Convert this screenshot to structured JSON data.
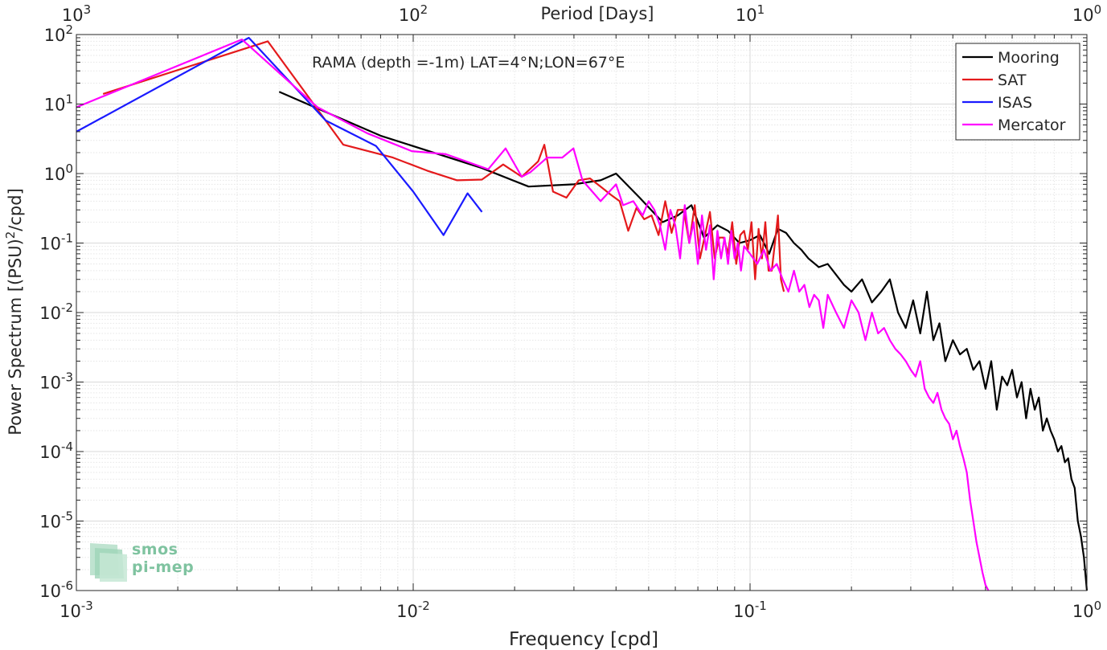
{
  "chart_data": {
    "type": "line",
    "title": "RAMA (depth =-1m) LAT=4°N;LON=67°E",
    "xlabel": "Frequency [cpd]",
    "ylabel": "Power Spectrum [(PSU)^2/cpd]",
    "top_axis_label": "Period [Days]",
    "x_scale": "log",
    "y_scale": "log",
    "xlim": [
      0.001,
      1
    ],
    "ylim": [
      1e-06,
      100
    ],
    "grid": true,
    "legend_position": "top-right",
    "x_ticks": [
      {
        "value": 0.001,
        "base": "10",
        "exp": "-3"
      },
      {
        "value": 0.01,
        "base": "10",
        "exp": "-2"
      },
      {
        "value": 0.1,
        "base": "10",
        "exp": "-1"
      },
      {
        "value": 1,
        "base": "10",
        "exp": "0"
      }
    ],
    "top_ticks": [
      {
        "value": 0.001,
        "base": "10",
        "exp": "3"
      },
      {
        "value": 0.01,
        "base": "10",
        "exp": "2"
      },
      {
        "value": 0.1,
        "base": "10",
        "exp": "1"
      },
      {
        "value": 1,
        "base": "10",
        "exp": "0"
      }
    ],
    "y_ticks": [
      {
        "value": 100,
        "base": "10",
        "exp": "2"
      },
      {
        "value": 10,
        "base": "10",
        "exp": "1"
      },
      {
        "value": 1,
        "base": "10",
        "exp": "0"
      },
      {
        "value": 0.1,
        "base": "10",
        "exp": "-1"
      },
      {
        "value": 0.01,
        "base": "10",
        "exp": "-2"
      },
      {
        "value": 0.001,
        "base": "10",
        "exp": "-3"
      },
      {
        "value": 0.0001,
        "base": "10",
        "exp": "-4"
      },
      {
        "value": 1e-05,
        "base": "10",
        "exp": "-5"
      },
      {
        "value": 1e-06,
        "base": "10",
        "exp": "-6"
      }
    ],
    "series": [
      {
        "name": "Mooring",
        "color": "#000000",
        "x": [
          0.004,
          0.008,
          0.016,
          0.022,
          0.03,
          0.036,
          0.04,
          0.047,
          0.055,
          0.061,
          0.067,
          0.073,
          0.08,
          0.086,
          0.093,
          0.1,
          0.107,
          0.114,
          0.121,
          0.128,
          0.135,
          0.142,
          0.149,
          0.16,
          0.17,
          0.18,
          0.19,
          0.2,
          0.215,
          0.23,
          0.245,
          0.26,
          0.275,
          0.29,
          0.305,
          0.32,
          0.335,
          0.35,
          0.365,
          0.38,
          0.4,
          0.42,
          0.44,
          0.46,
          0.48,
          0.5,
          0.52,
          0.54,
          0.56,
          0.58,
          0.6,
          0.62,
          0.64,
          0.66,
          0.68,
          0.7,
          0.72,
          0.74,
          0.76,
          0.78,
          0.8,
          0.82,
          0.84,
          0.86,
          0.88,
          0.9,
          0.92,
          0.94,
          0.96,
          0.98,
          1.0
        ],
        "y": [
          15,
          3.5,
          1.2,
          0.65,
          0.7,
          0.8,
          1.0,
          0.45,
          0.2,
          0.25,
          0.35,
          0.12,
          0.18,
          0.15,
          0.1,
          0.11,
          0.13,
          0.07,
          0.16,
          0.14,
          0.1,
          0.08,
          0.06,
          0.045,
          0.05,
          0.035,
          0.025,
          0.02,
          0.03,
          0.014,
          0.02,
          0.03,
          0.01,
          0.006,
          0.015,
          0.005,
          0.02,
          0.004,
          0.007,
          0.002,
          0.004,
          0.0025,
          0.003,
          0.0015,
          0.002,
          0.0008,
          0.002,
          0.0004,
          0.0012,
          0.0009,
          0.0015,
          0.0006,
          0.001,
          0.0003,
          0.0008,
          0.0004,
          0.0006,
          0.0002,
          0.0003,
          0.0002,
          0.00015,
          0.0001,
          0.00012,
          7e-05,
          8e-05,
          4e-05,
          3e-05,
          1e-05,
          6e-06,
          3e-06,
          1e-06
        ]
      },
      {
        "name": "SAT",
        "color": "#e41a1c",
        "x": [
          0.0012,
          0.0037,
          0.0062,
          0.0087,
          0.011,
          0.0135,
          0.016,
          0.0185,
          0.021,
          0.0235,
          0.0245,
          0.026,
          0.0285,
          0.031,
          0.0335,
          0.036,
          0.0385,
          0.041,
          0.0435,
          0.046,
          0.0485,
          0.051,
          0.0535,
          0.056,
          0.0585,
          0.061,
          0.0635,
          0.066,
          0.0685,
          0.071,
          0.0735,
          0.076,
          0.0785,
          0.081,
          0.0835,
          0.086,
          0.0885,
          0.091,
          0.0935,
          0.096,
          0.0985,
          0.101,
          0.1035,
          0.106,
          0.1085,
          0.111,
          0.1135,
          0.116,
          0.1185,
          0.121,
          0.1235,
          0.126
        ],
        "y": [
          14,
          80,
          2.6,
          1.7,
          1.1,
          0.8,
          0.82,
          1.35,
          0.9,
          1.5,
          2.6,
          0.55,
          0.45,
          0.8,
          0.85,
          0.65,
          0.5,
          0.4,
          0.15,
          0.32,
          0.22,
          0.25,
          0.13,
          0.4,
          0.14,
          0.3,
          0.3,
          0.1,
          0.35,
          0.06,
          0.13,
          0.28,
          0.06,
          0.12,
          0.12,
          0.07,
          0.2,
          0.05,
          0.13,
          0.15,
          0.08,
          0.2,
          0.03,
          0.16,
          0.06,
          0.2,
          0.04,
          0.04,
          0.1,
          0.25,
          0.03,
          0.02
        ]
      },
      {
        "name": "ISAS",
        "color": "#1a1aff",
        "x": [
          0.001,
          0.00325,
          0.0055,
          0.00775,
          0.01,
          0.0123,
          0.0145,
          0.016
        ],
        "y": [
          4,
          90,
          5.8,
          2.5,
          0.55,
          0.13,
          0.52,
          0.28
        ]
      },
      {
        "name": "Mercator",
        "color": "#ff00ff",
        "x": [
          0.001,
          0.0031,
          0.0052,
          0.0073,
          0.0099,
          0.0125,
          0.0167,
          0.0188,
          0.021,
          0.0223,
          0.025,
          0.0277,
          0.0299,
          0.0318,
          0.036,
          0.04,
          0.042,
          0.045,
          0.048,
          0.05,
          0.052,
          0.054,
          0.056,
          0.058,
          0.06,
          0.062,
          0.064,
          0.066,
          0.068,
          0.07,
          0.072,
          0.074,
          0.076,
          0.078,
          0.08,
          0.082,
          0.084,
          0.086,
          0.088,
          0.09,
          0.092,
          0.094,
          0.096,
          0.1,
          0.105,
          0.11,
          0.115,
          0.12,
          0.125,
          0.13,
          0.135,
          0.14,
          0.145,
          0.15,
          0.155,
          0.16,
          0.165,
          0.17,
          0.18,
          0.19,
          0.2,
          0.21,
          0.22,
          0.23,
          0.24,
          0.25,
          0.26,
          0.27,
          0.28,
          0.29,
          0.3,
          0.31,
          0.32,
          0.33,
          0.34,
          0.35,
          0.36,
          0.37,
          0.38,
          0.39,
          0.4,
          0.41,
          0.42,
          0.43,
          0.44,
          0.45,
          0.46,
          0.47,
          0.48,
          0.49,
          0.5,
          0.51
        ],
        "y": [
          9,
          85,
          9,
          3.8,
          2.1,
          1.9,
          1.15,
          2.3,
          0.9,
          1.05,
          1.7,
          1.7,
          2.3,
          0.8,
          0.4,
          0.7,
          0.35,
          0.4,
          0.25,
          0.4,
          0.3,
          0.18,
          0.08,
          0.3,
          0.18,
          0.06,
          0.35,
          0.1,
          0.2,
          0.05,
          0.25,
          0.08,
          0.18,
          0.03,
          0.15,
          0.06,
          0.12,
          0.05,
          0.15,
          0.06,
          0.1,
          0.04,
          0.09,
          0.07,
          0.05,
          0.08,
          0.04,
          0.05,
          0.03,
          0.02,
          0.04,
          0.02,
          0.025,
          0.012,
          0.018,
          0.015,
          0.006,
          0.018,
          0.01,
          0.006,
          0.015,
          0.01,
          0.004,
          0.01,
          0.005,
          0.006,
          0.004,
          0.003,
          0.0025,
          0.002,
          0.0015,
          0.0012,
          0.002,
          0.0008,
          0.0006,
          0.0005,
          0.0007,
          0.0004,
          0.0003,
          0.00025,
          0.00015,
          0.0002,
          0.00012,
          8e-05,
          5e-05,
          2e-05,
          1e-05,
          5e-06,
          3e-06,
          1.8e-06,
          1.2e-06,
          1e-06
        ]
      }
    ]
  },
  "logo": {
    "line1": "smos",
    "line2": "pi-mep"
  }
}
